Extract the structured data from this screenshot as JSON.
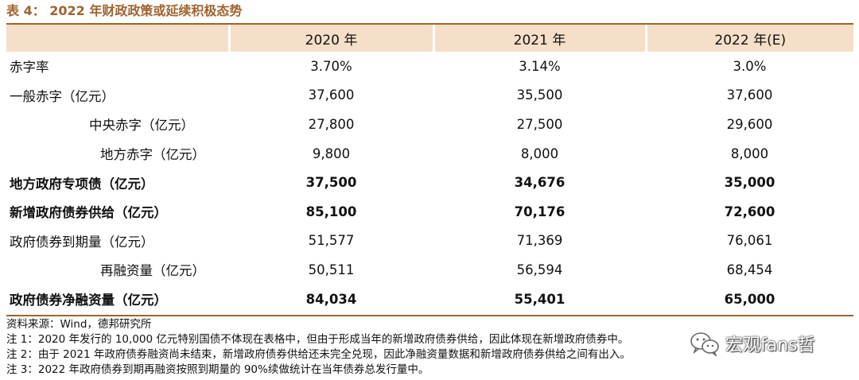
{
  "title": "表 4： 2022 年财政政策或延续积极态势",
  "table": {
    "headers": [
      "",
      "2020 年",
      "2021 年",
      "2022 年(E)"
    ],
    "rows": [
      {
        "label": "赤字率",
        "values": [
          "3.70%",
          "3.14%",
          "3.0%"
        ],
        "bold": false,
        "indent": 0
      },
      {
        "label": "一般赤字（亿元）",
        "values": [
          "37,600",
          "35,500",
          "37,600"
        ],
        "bold": false,
        "indent": 0
      },
      {
        "label": "中央赤字（亿元）",
        "values": [
          "27,800",
          "27,500",
          "29,600"
        ],
        "bold": false,
        "indent": 2
      },
      {
        "label": "地方赤字（亿元）",
        "values": [
          "9,800",
          "8,000",
          "8,000"
        ],
        "bold": false,
        "indent": 3
      },
      {
        "label": "地方政府专项债（亿元）",
        "values": [
          "37,500",
          "34,676",
          "35,000"
        ],
        "bold": true,
        "indent": 0
      },
      {
        "label": "新增政府债券供给（亿元）",
        "values": [
          "85,100",
          "70,176",
          "72,600"
        ],
        "bold": true,
        "indent": 0
      },
      {
        "label": "政府债券到期量（亿元）",
        "values": [
          "51,577",
          "71,369",
          "76,061"
        ],
        "bold": false,
        "indent": 0
      },
      {
        "label": "再融资量（亿元）",
        "values": [
          "50,511",
          "56,594",
          "68,454"
        ],
        "bold": false,
        "indent": 3
      },
      {
        "label": "政府债券净融资量（亿元）",
        "values": [
          "84,034",
          "55,401",
          "65,000"
        ],
        "bold": true,
        "indent": 0
      }
    ]
  },
  "notes": {
    "source": "资料来源：Wind，德邦研究所",
    "note1": "注 1：2020 年发行的 10,000 亿元特别国债不体现在表格中，但由于形成当年的新增政府债券供给，因此体现在新增政府债券中。",
    "note2": "注 2：由于 2021 年政府债券融资尚未结束，新增政府债券供给还未完全兑现，因此净融资量数据和新增政府债券供给之间有出入。",
    "note3": "注 3：2022 年政府债券到期再融资按照到期量的 90%续做统计在当年债券总发行量中。"
  },
  "watermark": {
    "icon": "wechat-icon",
    "text": "宏观fans哲"
  },
  "colors": {
    "accent": "#a0632e",
    "header_bg": "#f5dfc9"
  }
}
